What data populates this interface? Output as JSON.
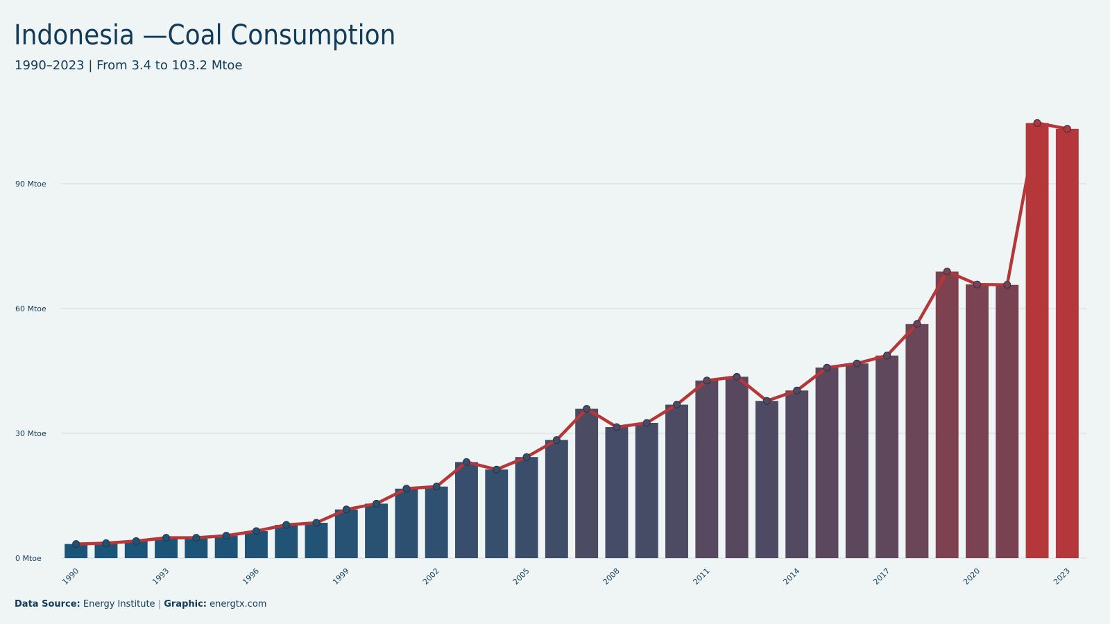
{
  "chart_data": {
    "type": "bar_line",
    "title": "Indonesia —Coal Consumption",
    "subtitle": "1990–2023 | From 3.4 to 103.2 Mtoe",
    "source_label": "Data Source:",
    "source": "Energy Institute",
    "credit_label": "Graphic:",
    "credit": "energtx.com",
    "categories": [
      "1990",
      null,
      null,
      "1993",
      null,
      null,
      "1996",
      null,
      null,
      "1999",
      null,
      null,
      "2002",
      null,
      null,
      "2005",
      null,
      null,
      "2008",
      null,
      null,
      "2011",
      null,
      null,
      "2014",
      null,
      null,
      "2017",
      null,
      null,
      "2020",
      null,
      null,
      "2023"
    ],
    "values": [
      3.4,
      3.6,
      4.1,
      4.9,
      4.9,
      5.4,
      6.5,
      8.0,
      8.5,
      11.7,
      13.1,
      16.7,
      17.2,
      23.1,
      21.3,
      24.3,
      28.4,
      35.9,
      31.5,
      32.5,
      36.9,
      42.7,
      43.6,
      37.8,
      40.3,
      45.8,
      46.8,
      48.7,
      56.3,
      68.9,
      65.8,
      65.7,
      104.6,
      103.2
    ],
    "color_scale": [
      "#1a5478",
      "#b5373a"
    ],
    "line_color": "#b5373a",
    "ylim": [
      0,
      110
    ],
    "yticks": [
      {
        "value": 0,
        "label": "0 Mtoe"
      },
      {
        "value": 30,
        "label": "30 Mtoe"
      },
      {
        "value": 60,
        "label": "60 Mtoe"
      },
      {
        "value": 90,
        "label": "90 Mtoe"
      }
    ],
    "grid": true
  }
}
